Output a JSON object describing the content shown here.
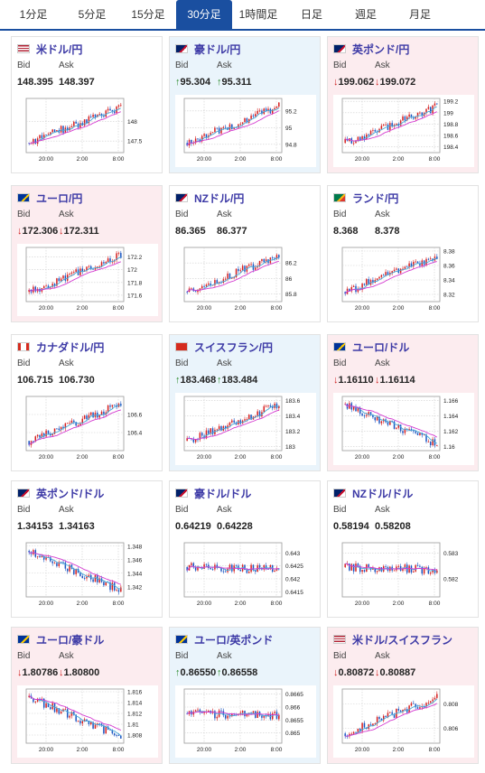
{
  "tabs": [
    "1分足",
    "5分足",
    "15分足",
    "30分足",
    "1時間足",
    "日足",
    "週足",
    "月足"
  ],
  "active_tab": 3,
  "labels": {
    "bid": "Bid",
    "ask": "Ask"
  },
  "time_labels": [
    "20:00",
    "2:00",
    "8:00"
  ],
  "colors": {
    "up_candle": "#d62020",
    "down_candle": "#1a55c2",
    "ma_line": "#d43ad0",
    "ma_line2": "#48a8d6",
    "grid": "#cfcfcf",
    "title": "#3d3aa6",
    "arrow_up": "#2a8a2a",
    "arrow_down": "#d02020"
  },
  "cards": [
    {
      "pair": "米ドル/円",
      "flag_icon": "us-flag-icon",
      "dir": "none",
      "bid": "148.395",
      "ask": "148.397",
      "y_ticks": [
        "148",
        "147.5"
      ],
      "y_range": [
        147.2,
        148.6
      ],
      "seed": 1,
      "trend": "up"
    },
    {
      "pair": "豪ドル/円",
      "flag_icon": "australia-flag-icon",
      "dir": "up",
      "bid": "95.304",
      "ask": "95.311",
      "y_ticks": [
        "95.2",
        "95",
        "94.8"
      ],
      "y_range": [
        94.7,
        95.35
      ],
      "seed": 2,
      "trend": "up"
    },
    {
      "pair": "英ポンド/円",
      "flag_icon": "uk-flag-icon",
      "dir": "down",
      "bid": "199.062",
      "ask": "199.072",
      "y_ticks": [
        "199.2",
        "199",
        "198.8",
        "198.6",
        "198.4"
      ],
      "y_range": [
        198.3,
        199.25
      ],
      "seed": 3,
      "trend": "up"
    },
    {
      "pair": "ユーロ/円",
      "flag_icon": "eu-flag-icon",
      "dir": "down",
      "bid": "172.306",
      "ask": "172.311",
      "y_ticks": [
        "172.2",
        "172",
        "171.8",
        "171.6"
      ],
      "y_range": [
        171.5,
        172.35
      ],
      "seed": 4,
      "trend": "up"
    },
    {
      "pair": "NZドル/円",
      "flag_icon": "nz-flag-icon",
      "dir": "none",
      "bid": "86.365",
      "ask": "86.377",
      "y_ticks": [
        "86.2",
        "86",
        "85.8"
      ],
      "y_range": [
        85.7,
        86.4
      ],
      "seed": 5,
      "trend": "up"
    },
    {
      "pair": "ランド/円",
      "flag_icon": "south-africa-flag-icon",
      "dir": "none",
      "bid": "8.368",
      "ask": "8.378",
      "y_ticks": [
        "8.38",
        "8.36",
        "8.34",
        "8.32"
      ],
      "y_range": [
        8.31,
        8.385
      ],
      "seed": 6,
      "trend": "up"
    },
    {
      "pair": "カナダドル/円",
      "flag_icon": "canada-flag-icon",
      "dir": "none",
      "bid": "106.715",
      "ask": "106.730",
      "y_ticks": [
        "106.6",
        "106.4"
      ],
      "y_range": [
        106.2,
        106.8
      ],
      "seed": 7,
      "trend": "up"
    },
    {
      "pair": "スイスフラン/円",
      "flag_icon": "switzerland-flag-icon",
      "dir": "up",
      "bid": "183.468",
      "ask": "183.484",
      "y_ticks": [
        "183.6",
        "183.4",
        "183.2",
        "183"
      ],
      "y_range": [
        182.95,
        183.65
      ],
      "seed": 8,
      "trend": "up"
    },
    {
      "pair": "ユーロ/ドル",
      "flag_icon": "eu-us-flag-icon",
      "dir": "down",
      "bid": "1.16110",
      "ask": "1.16114",
      "y_ticks": [
        "1.166",
        "1.164",
        "1.162",
        "1.16"
      ],
      "y_range": [
        1.1595,
        1.1665
      ],
      "seed": 9,
      "trend": "down"
    },
    {
      "pair": "英ポンド/ドル",
      "flag_icon": "uk-us-flag-icon",
      "dir": "none",
      "bid": "1.34153",
      "ask": "1.34163",
      "y_ticks": [
        "1.348",
        "1.346",
        "1.344",
        "1.342"
      ],
      "y_range": [
        1.3405,
        1.3485
      ],
      "seed": 10,
      "trend": "down"
    },
    {
      "pair": "豪ドル/ドル",
      "flag_icon": "australia-us-flag-icon",
      "dir": "none",
      "bid": "0.64219",
      "ask": "0.64228",
      "y_ticks": [
        "0.643",
        "0.6425",
        "0.642",
        "0.6415"
      ],
      "y_range": [
        0.6413,
        0.6434
      ],
      "seed": 11,
      "trend": "flat"
    },
    {
      "pair": "NZドル/ドル",
      "flag_icon": "nz-us-flag-icon",
      "dir": "none",
      "bid": "0.58194",
      "ask": "0.58208",
      "y_ticks": [
        "0.583",
        "0.582"
      ],
      "y_range": [
        0.5813,
        0.5834
      ],
      "seed": 12,
      "trend": "flat"
    },
    {
      "pair": "ユーロ/豪ドル",
      "flag_icon": "eu-australia-flag-icon",
      "dir": "down",
      "bid": "1.80786",
      "ask": "1.80800",
      "y_ticks": [
        "1.816",
        "1.814",
        "1.812",
        "1.81",
        "1.808"
      ],
      "y_range": [
        1.8065,
        1.8165
      ],
      "seed": 13,
      "trend": "down"
    },
    {
      "pair": "ユーロ/英ポンド",
      "flag_icon": "eu-uk-flag-icon",
      "dir": "up",
      "bid": "0.86550",
      "ask": "0.86558",
      "y_ticks": [
        "0.8665",
        "0.866",
        "0.8655",
        "0.865"
      ],
      "y_range": [
        0.8646,
        0.8667
      ],
      "seed": 14,
      "trend": "flat"
    },
    {
      "pair": "米ドル/スイスフラン",
      "flag_icon": "us-switzerland-flag-icon",
      "dir": "down",
      "bid": "0.80872",
      "ask": "0.80887",
      "y_ticks": [
        "0.808",
        "0.806"
      ],
      "y_range": [
        0.8048,
        0.8092
      ],
      "seed": 15,
      "trend": "up"
    }
  ]
}
